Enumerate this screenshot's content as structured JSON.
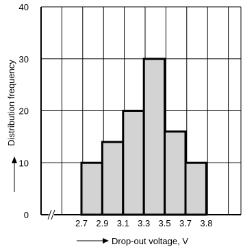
{
  "chart_data": {
    "type": "bar",
    "title": "",
    "xlabel": "Drop-out voltage, V",
    "ylabel": "Distribution frequency",
    "ylim": [
      0,
      40
    ],
    "y_ticks": [
      "0",
      "10",
      "20",
      "30",
      "40"
    ],
    "x_tick_labels": [
      "2.7",
      "2.9",
      "3.1",
      "3.3",
      "3.5",
      "3.7",
      "3.8"
    ],
    "bins": [
      {
        "from": "2.7",
        "to": "2.9",
        "value": 10
      },
      {
        "from": "2.9",
        "to": "3.1",
        "value": 14
      },
      {
        "from": "3.1",
        "to": "3.3",
        "value": 20
      },
      {
        "from": "3.3",
        "to": "3.5",
        "value": 30
      },
      {
        "from": "3.5",
        "to": "3.7",
        "value": 16
      },
      {
        "from": "3.7",
        "to": "3.8",
        "value": 10
      }
    ],
    "grid": true,
    "axis_break": true
  }
}
